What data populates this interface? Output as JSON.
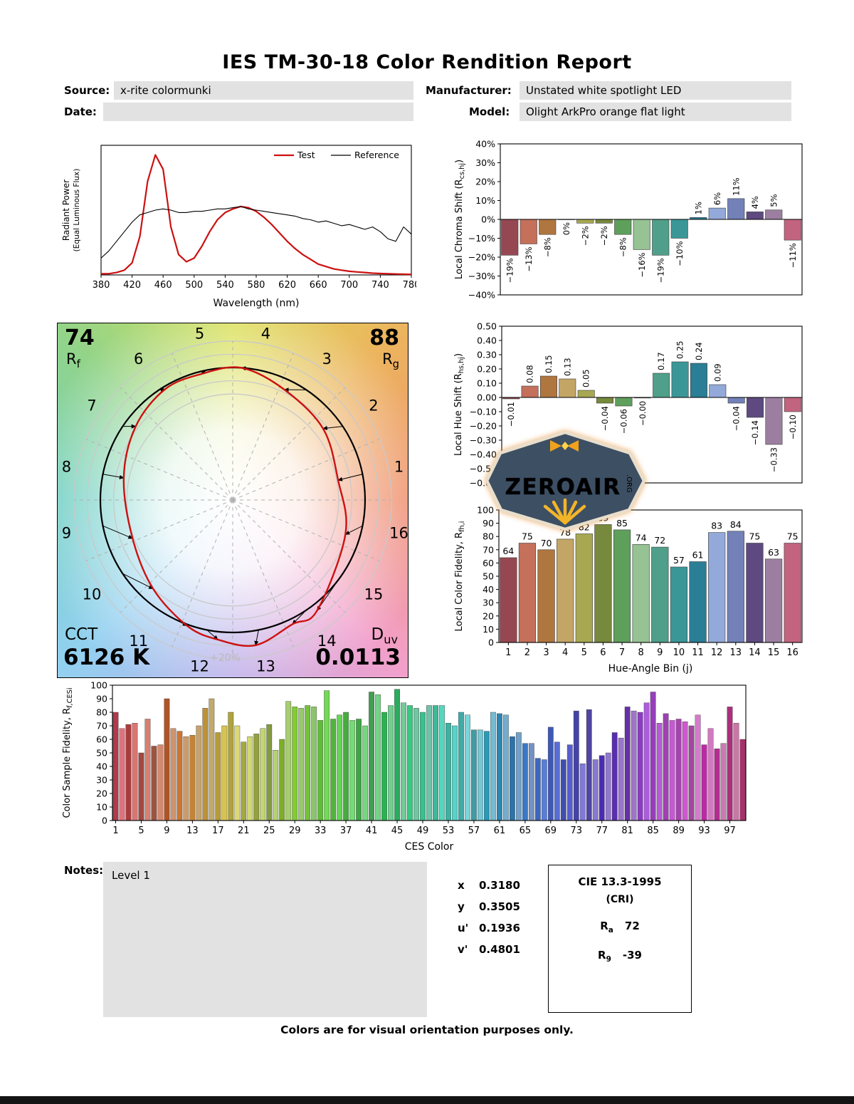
{
  "title": "IES TM-30-18 Color Rendition Report",
  "header": {
    "source_label": "Source:",
    "source_value": "x-rite colormunki",
    "manufacturer_label": "Manufacturer:",
    "manufacturer_value": "Unstated white spotlight LED",
    "date_label": "Date:",
    "date_value": "",
    "model_label": "Model:",
    "model_value": "Olight ArkPro orange flat light"
  },
  "cvg": {
    "rf_value": "74",
    "rf_base": "R",
    "rf_sub": "f",
    "rg_value": "88",
    "rg_base": "R",
    "rg_sub": "g",
    "cct_label": "CCT",
    "cct_value": "6126 K",
    "duv_base": "D",
    "duv_sub": "uv",
    "duv_value": "0.0113",
    "ring_label": "+20%"
  },
  "hue_bin_colors": [
    "#964852",
    "#c4705b",
    "#b0763f",
    "#c3a566",
    "#a8a852",
    "#77893c",
    "#5f9f5c",
    "#97c294",
    "#4f9f8a",
    "#3b9797",
    "#2a7e95",
    "#93a9d9",
    "#7381b8",
    "#5e4a80",
    "#9c7fa0",
    "#c2647f"
  ],
  "notes": {
    "label": "Notes:",
    "content": "Level 1"
  },
  "chromaticity": {
    "rows": [
      {
        "label": "x",
        "value": "0.3180"
      },
      {
        "label": "y",
        "value": "0.3505"
      },
      {
        "label": "u'",
        "value": "0.1936"
      },
      {
        "label": "v'",
        "value": "0.4801"
      }
    ]
  },
  "cri": {
    "title": "CIE 13.3-1995",
    "subtitle": "(CRI)",
    "rows": [
      {
        "base": "R",
        "sub": "a",
        "value": "72"
      },
      {
        "base": "R",
        "sub": "9",
        "value": "-39"
      }
    ]
  },
  "footer": "Colors are for visual orientation purposes only.",
  "chart_data": [
    {
      "id": "spd",
      "type": "line",
      "xlabel": "Wavelength (nm)",
      "ylabel_lines": [
        "Radiant Power",
        "(Equal Luminous Flux)"
      ],
      "xlim": [
        380,
        780
      ],
      "ylim": [
        0,
        1.08
      ],
      "xticks": [
        380,
        420,
        460,
        500,
        540,
        580,
        620,
        660,
        700,
        740,
        780
      ],
      "legend": [
        {
          "label": "Test",
          "color": "#cc1111"
        },
        {
          "label": "Reference",
          "color": "#000000"
        }
      ],
      "series": [
        {
          "name": "Test",
          "color": "#cc1111",
          "width": 2.2,
          "x": [
            380,
            390,
            400,
            410,
            420,
            430,
            440,
            450,
            460,
            470,
            480,
            490,
            500,
            510,
            520,
            530,
            540,
            550,
            560,
            570,
            580,
            590,
            600,
            610,
            620,
            630,
            640,
            650,
            660,
            670,
            680,
            690,
            700,
            710,
            720,
            730,
            740,
            750,
            760,
            770,
            780
          ],
          "y": [
            0.01,
            0.01,
            0.02,
            0.04,
            0.1,
            0.32,
            0.78,
            1.0,
            0.88,
            0.4,
            0.17,
            0.11,
            0.14,
            0.24,
            0.36,
            0.46,
            0.52,
            0.55,
            0.57,
            0.56,
            0.53,
            0.48,
            0.42,
            0.35,
            0.28,
            0.22,
            0.17,
            0.13,
            0.09,
            0.07,
            0.05,
            0.04,
            0.03,
            0.025,
            0.02,
            0.015,
            0.012,
            0.01,
            0.008,
            0.006,
            0.005
          ]
        },
        {
          "name": "Reference",
          "color": "#000000",
          "width": 1.1,
          "x": [
            380,
            390,
            400,
            410,
            420,
            430,
            440,
            450,
            460,
            470,
            480,
            490,
            500,
            510,
            520,
            530,
            540,
            550,
            560,
            570,
            580,
            590,
            600,
            610,
            620,
            630,
            640,
            650,
            660,
            670,
            680,
            690,
            700,
            710,
            720,
            730,
            740,
            750,
            760,
            770,
            780
          ],
          "y": [
            0.14,
            0.2,
            0.28,
            0.36,
            0.44,
            0.5,
            0.52,
            0.54,
            0.55,
            0.54,
            0.52,
            0.52,
            0.53,
            0.53,
            0.54,
            0.55,
            0.55,
            0.56,
            0.57,
            0.55,
            0.54,
            0.53,
            0.52,
            0.51,
            0.5,
            0.49,
            0.47,
            0.46,
            0.44,
            0.45,
            0.43,
            0.41,
            0.42,
            0.4,
            0.38,
            0.4,
            0.36,
            0.3,
            0.28,
            0.4,
            0.34
          ]
        }
      ]
    },
    {
      "id": "chroma_shift",
      "type": "bar",
      "ylabel": "Local Chroma Shift (R_{cs,hj})",
      "categories": [
        1,
        2,
        3,
        4,
        5,
        6,
        7,
        8,
        9,
        10,
        11,
        12,
        13,
        14,
        15,
        16
      ],
      "values": [
        -19,
        -13,
        -8,
        0,
        -2,
        -2,
        -8,
        -16,
        -19,
        -10,
        1,
        6,
        11,
        4,
        5,
        -11
      ],
      "value_labels": [
        "−19%",
        "−13%",
        "−8%",
        "0%",
        "−2%",
        "−2%",
        "−8%",
        "−16%",
        "−19%",
        "−10%",
        "1%",
        "6%",
        "11%",
        "4%",
        "5%",
        "−11%"
      ],
      "ylim": [
        -40,
        40
      ],
      "yticks": [
        {
          "v": 40,
          "l": "40%"
        },
        {
          "v": 30,
          "l": "30%"
        },
        {
          "v": 20,
          "l": "20%"
        },
        {
          "v": 10,
          "l": "10%"
        },
        {
          "v": 0,
          "l": "0%"
        },
        {
          "v": -10,
          "l": "−10%"
        },
        {
          "v": -20,
          "l": "−20%"
        },
        {
          "v": -30,
          "l": "−30%"
        },
        {
          "v": -40,
          "l": "−40%"
        }
      ]
    },
    {
      "id": "hue_shift",
      "type": "bar",
      "ylabel": "Local Hue Shift (R_{hs,hj})",
      "categories": [
        1,
        2,
        3,
        4,
        5,
        6,
        7,
        8,
        9,
        10,
        11,
        12,
        13,
        14,
        15,
        16
      ],
      "values": [
        -0.01,
        0.08,
        0.15,
        0.13,
        0.05,
        -0.04,
        -0.06,
        -0.004,
        0.17,
        0.25,
        0.24,
        0.09,
        -0.04,
        -0.14,
        -0.33,
        -0.1
      ],
      "value_labels": [
        "−0.01",
        "0.08",
        "0.15",
        "0.13",
        "0.05",
        "−0.04",
        "−0.06",
        "−0.00",
        "0.17",
        "0.25",
        "0.24",
        "0.09",
        "−0.04",
        "−0.14",
        "−0.33",
        "−0.10"
      ],
      "ylim": [
        -0.6,
        0.5
      ],
      "yticks": [
        {
          "v": 0.5,
          "l": "0.50"
        },
        {
          "v": 0.4,
          "l": "0.40"
        },
        {
          "v": 0.3,
          "l": "0.30"
        },
        {
          "v": 0.2,
          "l": "0.20"
        },
        {
          "v": 0.1,
          "l": "0.10"
        },
        {
          "v": 0,
          "l": "0.00"
        },
        {
          "v": -0.1,
          "l": "−0.10"
        },
        {
          "v": -0.2,
          "l": "−0.20"
        },
        {
          "v": -0.3,
          "l": "−0.30"
        },
        {
          "v": -0.4,
          "l": "−0.40"
        },
        {
          "v": -0.5,
          "l": "−0.50"
        },
        {
          "v": -0.6,
          "l": "−0.60"
        }
      ]
    },
    {
      "id": "local_fidelity",
      "type": "bar",
      "ylabel": "Local Color Fidelity, R_{fh,i}",
      "xlabel": "Hue-Angle Bin (j)",
      "categories": [
        1,
        2,
        3,
        4,
        5,
        6,
        7,
        8,
        9,
        10,
        11,
        12,
        13,
        14,
        15,
        16
      ],
      "values": [
        64,
        75,
        70,
        78,
        82,
        89,
        85,
        74,
        72,
        57,
        61,
        83,
        84,
        75,
        63,
        75
      ],
      "value_labels": [
        "64",
        "75",
        "70",
        "78",
        "82",
        "89",
        "85",
        "74",
        "72",
        "57",
        "61",
        "83",
        "84",
        "75",
        "63",
        "75"
      ],
      "xtick_labels": [
        1,
        2,
        3,
        4,
        5,
        6,
        7,
        8,
        9,
        10,
        11,
        12,
        13,
        14,
        15,
        16
      ],
      "ylim": [
        0,
        100
      ],
      "yticks": [
        {
          "v": 100,
          "l": "100"
        },
        {
          "v": 90,
          "l": "90"
        },
        {
          "v": 80,
          "l": "80"
        },
        {
          "v": 70,
          "l": "70"
        },
        {
          "v": 60,
          "l": "60"
        },
        {
          "v": 50,
          "l": "50"
        },
        {
          "v": 40,
          "l": "40"
        },
        {
          "v": 30,
          "l": "30"
        },
        {
          "v": 20,
          "l": "20"
        },
        {
          "v": 10,
          "l": "10"
        },
        {
          "v": 0,
          "l": "0"
        }
      ]
    },
    {
      "id": "ces_fidelity",
      "type": "bar",
      "ylabel": "Color Sample Fidelity, R_{f,CESi}",
      "xlabel": "CES Color",
      "values": [
        80,
        68,
        71,
        72,
        50,
        75,
        55,
        56,
        90,
        68,
        66,
        62,
        63,
        70,
        83,
        90,
        65,
        70,
        80,
        70,
        58,
        62,
        64,
        68,
        71,
        52,
        60,
        88,
        84,
        83,
        85,
        84,
        74,
        96,
        75,
        78,
        80,
        74,
        75,
        70,
        95,
        93,
        80,
        85,
        97,
        87,
        85,
        83,
        80,
        85,
        85,
        85,
        72,
        70,
        80,
        78,
        67,
        67,
        66,
        80,
        79,
        78,
        62,
        65,
        57,
        57,
        46,
        45,
        69,
        58,
        45,
        56,
        81,
        42,
        82,
        45,
        48,
        50,
        65,
        61,
        84,
        81,
        80,
        87,
        95,
        72,
        79,
        74,
        75,
        73,
        70,
        78,
        56,
        68,
        53,
        57,
        84,
        72,
        60
      ],
      "xtick_labels": [
        1,
        5,
        9,
        13,
        17,
        21,
        25,
        29,
        33,
        37,
        41,
        45,
        49,
        53,
        57,
        61,
        65,
        69,
        73,
        77,
        81,
        85,
        89,
        93,
        97
      ],
      "ylim": [
        0,
        100
      ],
      "yticks": [
        {
          "v": 100,
          "l": "100"
        },
        {
          "v": 90,
          "l": "90"
        },
        {
          "v": 80,
          "l": "80"
        },
        {
          "v": 70,
          "l": "70"
        },
        {
          "v": 60,
          "l": "60"
        },
        {
          "v": 50,
          "l": "50"
        },
        {
          "v": 40,
          "l": "40"
        },
        {
          "v": 30,
          "l": "30"
        },
        {
          "v": 20,
          "l": "20"
        },
        {
          "v": 10,
          "l": "10"
        },
        {
          "v": 0,
          "l": "0"
        }
      ]
    }
  ]
}
